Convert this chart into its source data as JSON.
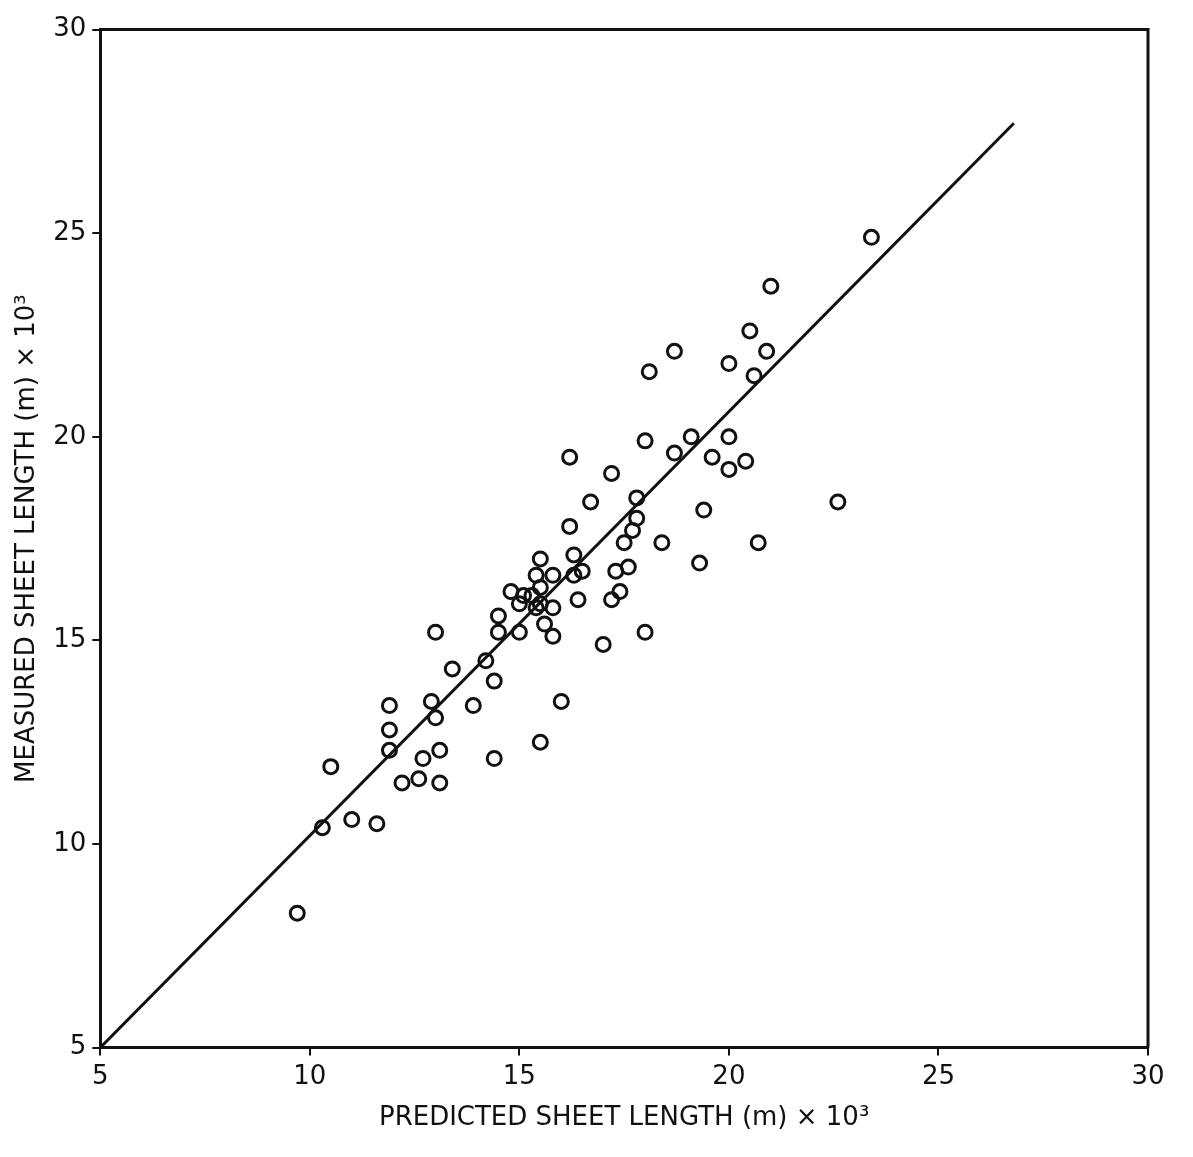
{
  "chart_data": {
    "type": "scatter",
    "xlabel": "PREDICTED SHEET LENGTH (m) × 10³",
    "ylabel": "MEASURED SHEET LENGTH (m) × 10³",
    "xlim": [
      5,
      30
    ],
    "xticks": [
      5,
      10,
      15,
      20,
      25,
      30
    ],
    "ylim": [
      5,
      30
    ],
    "yticks": [
      5,
      10,
      15,
      20,
      25,
      30
    ],
    "grid": false,
    "legend": false,
    "series": [
      {
        "marker": "circle",
        "color": "#111111",
        "x": [
          9.7,
          10.3,
          10.5,
          11.0,
          11.6,
          11.9,
          11.9,
          11.9,
          12.2,
          12.6,
          12.7,
          12.9,
          13.0,
          13.1,
          13.1,
          13.0,
          13.4,
          13.9,
          14.2,
          14.4,
          14.4,
          14.5,
          14.5,
          14.8,
          15.0,
          15.0,
          15.1,
          15.3,
          15.4,
          15.4,
          15.5,
          15.5,
          15.5,
          15.6,
          15.8,
          15.8,
          15.8,
          16.2,
          16.2,
          16.3,
          16.3,
          16.4,
          16.5,
          16.7,
          17.0,
          15.5,
          16.0,
          17.2,
          17.2,
          17.3,
          17.4,
          17.5,
          17.6,
          17.8,
          17.7,
          17.8,
          18.0,
          18.0,
          18.1,
          18.4,
          18.7,
          18.7,
          19.1,
          19.3,
          19.4,
          19.6,
          20.0,
          20.0,
          20.0,
          20.4,
          20.5,
          20.6,
          20.7,
          20.9,
          21.0,
          22.6,
          23.4
        ],
        "values": [
          8.3,
          10.4,
          11.9,
          10.6,
          10.5,
          12.3,
          13.4,
          12.8,
          11.5,
          11.6,
          12.1,
          13.5,
          13.1,
          12.3,
          11.5,
          15.2,
          14.3,
          13.4,
          14.5,
          14.0,
          12.1,
          15.6,
          15.2,
          16.2,
          15.9,
          15.2,
          16.1,
          16.1,
          15.8,
          16.6,
          17.0,
          15.9,
          16.3,
          15.4,
          16.6,
          15.8,
          15.1,
          19.5,
          17.8,
          17.1,
          16.6,
          16.0,
          16.7,
          18.4,
          14.9,
          12.5,
          13.5,
          16.0,
          19.1,
          16.7,
          16.2,
          17.4,
          16.8,
          18.0,
          17.7,
          18.5,
          19.9,
          15.2,
          21.6,
          17.4,
          19.6,
          22.1,
          20.0,
          16.9,
          18.2,
          19.5,
          21.8,
          19.2,
          20.0,
          19.4,
          22.6,
          21.5,
          17.4,
          22.1,
          23.7,
          18.4,
          24.9
        ]
      },
      {
        "type": "line",
        "color": "#111111",
        "x": [
          5,
          26.8
        ],
        "values": [
          5,
          27.7
        ]
      }
    ]
  }
}
